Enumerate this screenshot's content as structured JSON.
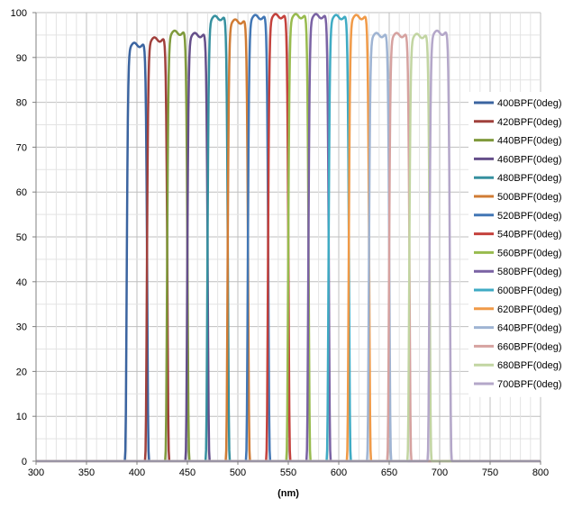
{
  "chart_data": {
    "type": "line",
    "xlabel": "(nm)",
    "ylabel": "",
    "xlim": [
      300,
      800
    ],
    "ylim": [
      0,
      100
    ],
    "x_ticks": [
      300,
      350,
      400,
      450,
      500,
      550,
      600,
      650,
      700,
      750,
      800
    ],
    "y_ticks": [
      0,
      10,
      20,
      30,
      40,
      50,
      60,
      70,
      80,
      90,
      100
    ],
    "grid": true,
    "legend_position": "right",
    "series": [
      {
        "name": "400BPF(0deg)",
        "color": "#3b64a0",
        "center": 400,
        "peak": 92.8,
        "fwhm": 20
      },
      {
        "name": "420BPF(0deg)",
        "color": "#a0403c",
        "center": 420,
        "peak": 94.0,
        "fwhm": 20
      },
      {
        "name": "440BPF(0deg)",
        "color": "#7f9a3c",
        "center": 440,
        "peak": 95.5,
        "fwhm": 20
      },
      {
        "name": "460BPF(0deg)",
        "color": "#654f8a",
        "center": 460,
        "peak": 95.0,
        "fwhm": 20
      },
      {
        "name": "480BPF(0deg)",
        "color": "#36909f",
        "center": 480,
        "peak": 98.8,
        "fwhm": 20
      },
      {
        "name": "500BPF(0deg)",
        "color": "#d07c35",
        "center": 500,
        "peak": 98.0,
        "fwhm": 20
      },
      {
        "name": "520BPF(0deg)",
        "color": "#4277b5",
        "center": 520,
        "peak": 99.0,
        "fwhm": 20
      },
      {
        "name": "540BPF(0deg)",
        "color": "#c4423d",
        "center": 540,
        "peak": 99.2,
        "fwhm": 20
      },
      {
        "name": "560BPF(0deg)",
        "color": "#98bb4e",
        "center": 560,
        "peak": 99.2,
        "fwhm": 20
      },
      {
        "name": "580BPF(0deg)",
        "color": "#7a62a4",
        "center": 580,
        "peak": 99.2,
        "fwhm": 20
      },
      {
        "name": "600BPF(0deg)",
        "color": "#3fabc4",
        "center": 600,
        "peak": 99.0,
        "fwhm": 20
      },
      {
        "name": "620BPF(0deg)",
        "color": "#f09a48",
        "center": 620,
        "peak": 99.0,
        "fwhm": 20
      },
      {
        "name": "640BPF(0deg)",
        "color": "#9fb4d3",
        "center": 640,
        "peak": 95.0,
        "fwhm": 20
      },
      {
        "name": "660BPF(0deg)",
        "color": "#d6a2a0",
        "center": 660,
        "peak": 95.0,
        "fwhm": 20
      },
      {
        "name": "680BPF(0deg)",
        "color": "#c2d5a2",
        "center": 680,
        "peak": 94.8,
        "fwhm": 20
      },
      {
        "name": "700BPF(0deg)",
        "color": "#b4a7c9",
        "center": 700,
        "peak": 95.5,
        "fwhm": 20
      }
    ]
  }
}
